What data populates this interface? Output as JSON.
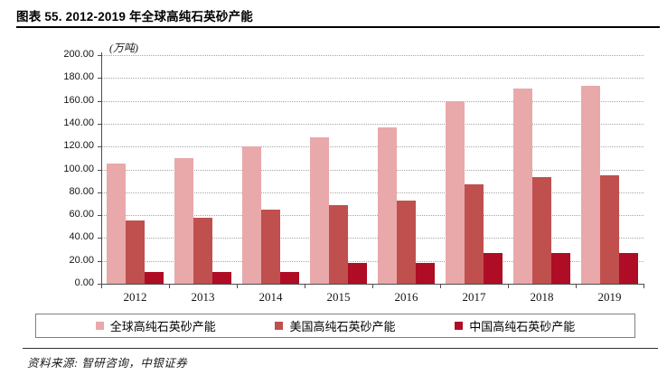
{
  "figure": {
    "title": "图表 55. 2012-2019 年全球高纯石英砂产能",
    "source_note": "资料来源: 智研咨询，中银证券"
  },
  "chart_data": {
    "type": "bar",
    "title": "2012-2019 年全球高纯石英砂产能",
    "unit_label": "(万吨)",
    "categories": [
      "2012",
      "2013",
      "2014",
      "2015",
      "2016",
      "2017",
      "2018",
      "2019"
    ],
    "series": [
      {
        "name": "全球高纯石英砂产能",
        "color": "#E9A8AA",
        "values": [
          105,
          110,
          120,
          128,
          137,
          160,
          171,
          173
        ]
      },
      {
        "name": "美国高纯石英砂产能",
        "color": "#C0504D",
        "values": [
          55,
          58,
          65,
          69,
          73,
          87,
          93,
          95
        ]
      },
      {
        "name": "中国高纯石英砂产能",
        "color": "#AF0D25",
        "values": [
          10,
          10,
          10,
          18,
          18,
          27,
          27,
          27
        ]
      }
    ],
    "ylim": [
      0,
      200
    ],
    "ytick_step": 20,
    "ytick_decimals": 2,
    "grid": "horizontal-dotted",
    "legend_position": "bottom"
  }
}
